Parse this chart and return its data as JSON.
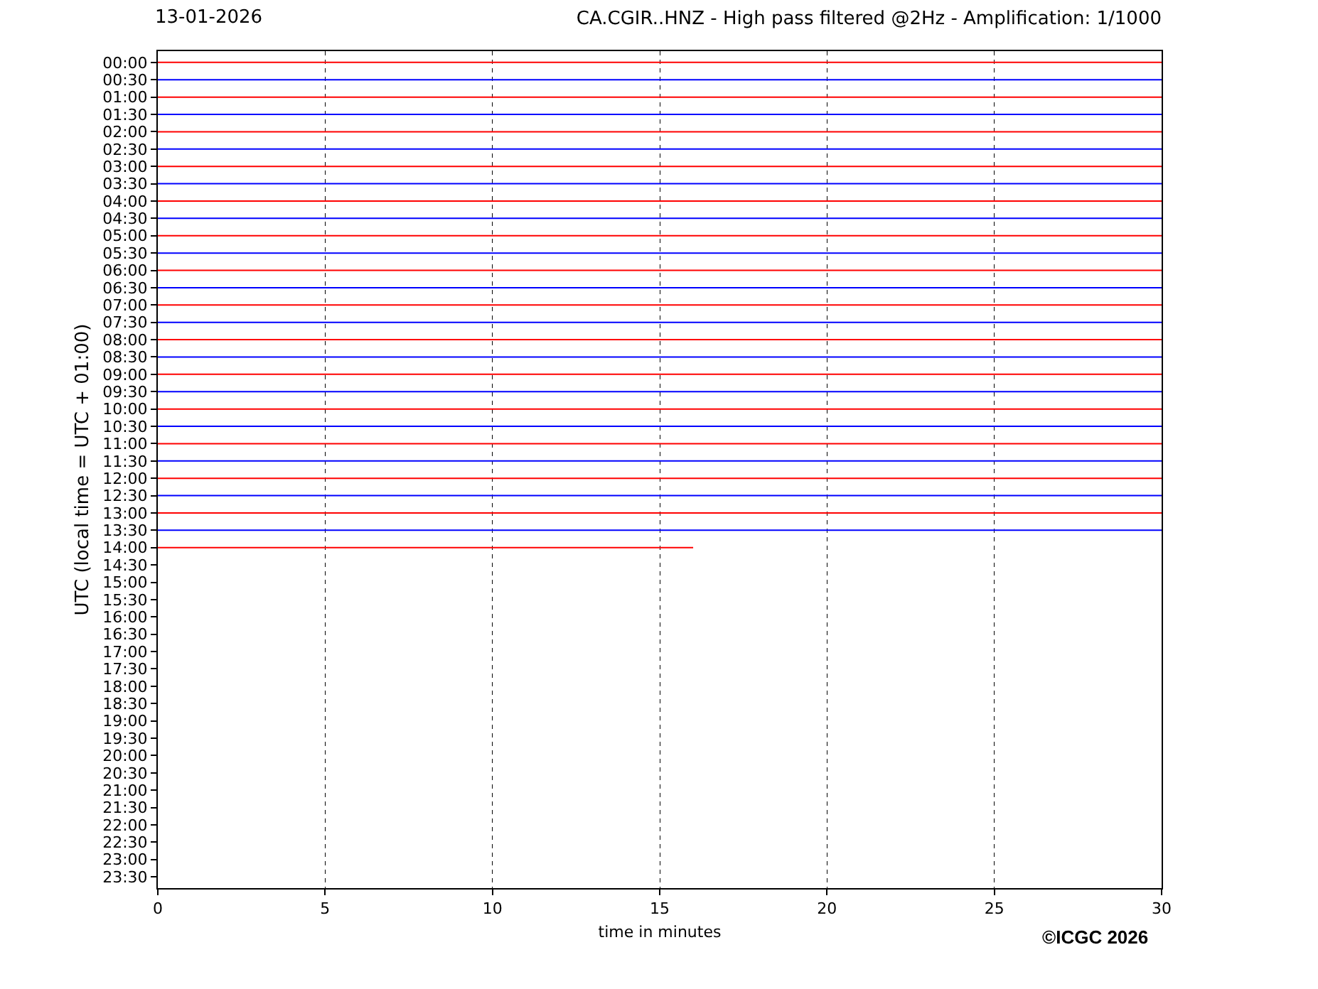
{
  "chart_data": {
    "type": "line",
    "title": "CA.CGIR..HNZ - High pass filtered @2Hz - Amplification: 1/1000",
    "xlabel": "time in minutes",
    "ylabel": "UTC (local time = UTC + 01:00)",
    "annotations": [
      "13-01-2026",
      "©ICGC 2026"
    ],
    "xlim": [
      0,
      30
    ],
    "xticks": [
      0,
      5,
      10,
      15,
      20,
      25,
      30
    ],
    "ylim": [
      23.825,
      -0.325
    ],
    "yticks": [
      {
        "value": 0,
        "label": "00:00"
      },
      {
        "value": 0.5,
        "label": "00:30"
      },
      {
        "value": 1,
        "label": "01:00"
      },
      {
        "value": 1.5,
        "label": "01:30"
      },
      {
        "value": 2,
        "label": "02:00"
      },
      {
        "value": 2.5,
        "label": "02:30"
      },
      {
        "value": 3,
        "label": "03:00"
      },
      {
        "value": 3.5,
        "label": "03:30"
      },
      {
        "value": 4,
        "label": "04:00"
      },
      {
        "value": 4.5,
        "label": "04:30"
      },
      {
        "value": 5,
        "label": "05:00"
      },
      {
        "value": 5.5,
        "label": "05:30"
      },
      {
        "value": 6,
        "label": "06:00"
      },
      {
        "value": 6.5,
        "label": "06:30"
      },
      {
        "value": 7,
        "label": "07:00"
      },
      {
        "value": 7.5,
        "label": "07:30"
      },
      {
        "value": 8,
        "label": "08:00"
      },
      {
        "value": 8.5,
        "label": "08:30"
      },
      {
        "value": 9,
        "label": "09:00"
      },
      {
        "value": 9.5,
        "label": "09:30"
      },
      {
        "value": 10,
        "label": "10:00"
      },
      {
        "value": 10.5,
        "label": "10:30"
      },
      {
        "value": 11,
        "label": "11:00"
      },
      {
        "value": 11.5,
        "label": "11:30"
      },
      {
        "value": 12,
        "label": "12:00"
      },
      {
        "value": 12.5,
        "label": "12:30"
      },
      {
        "value": 13,
        "label": "13:00"
      },
      {
        "value": 13.5,
        "label": "13:30"
      },
      {
        "value": 14,
        "label": "14:00"
      },
      {
        "value": 14.5,
        "label": "14:30"
      },
      {
        "value": 15,
        "label": "15:00"
      },
      {
        "value": 15.5,
        "label": "15:30"
      },
      {
        "value": 16,
        "label": "16:00"
      },
      {
        "value": 16.5,
        "label": "16:30"
      },
      {
        "value": 17,
        "label": "17:00"
      },
      {
        "value": 17.5,
        "label": "17:30"
      },
      {
        "value": 18,
        "label": "18:00"
      },
      {
        "value": 18.5,
        "label": "18:30"
      },
      {
        "value": 19,
        "label": "19:00"
      },
      {
        "value": 19.5,
        "label": "19:30"
      },
      {
        "value": 20,
        "label": "20:00"
      },
      {
        "value": 20.5,
        "label": "20:30"
      },
      {
        "value": 21,
        "label": "21:00"
      },
      {
        "value": 21.5,
        "label": "21:30"
      },
      {
        "value": 22,
        "label": "22:00"
      },
      {
        "value": 22.5,
        "label": "22:30"
      },
      {
        "value": 23,
        "label": "23:00"
      },
      {
        "value": 23.5,
        "label": "23:30"
      }
    ],
    "grid": "x",
    "marker": "none",
    "line_style": "solid",
    "series": [
      {
        "color": "#ff0000",
        "x": [
          0,
          30
        ],
        "values": [
          0,
          0
        ]
      },
      {
        "color": "#0000ff",
        "x": [
          0,
          30
        ],
        "values": [
          0.5,
          0.5
        ]
      },
      {
        "color": "#ff0000",
        "x": [
          0,
          30
        ],
        "values": [
          1,
          1
        ]
      },
      {
        "color": "#0000ff",
        "x": [
          0,
          30
        ],
        "values": [
          1.5,
          1.5
        ]
      },
      {
        "color": "#ff0000",
        "x": [
          0,
          30
        ],
        "values": [
          2,
          2
        ]
      },
      {
        "color": "#0000ff",
        "x": [
          0,
          30
        ],
        "values": [
          2.5,
          2.5
        ]
      },
      {
        "color": "#ff0000",
        "x": [
          0,
          30
        ],
        "values": [
          3,
          3
        ]
      },
      {
        "color": "#0000ff",
        "x": [
          0,
          30
        ],
        "values": [
          3.5,
          3.5
        ]
      },
      {
        "color": "#ff0000",
        "x": [
          0,
          30
        ],
        "values": [
          4,
          4
        ]
      },
      {
        "color": "#0000ff",
        "x": [
          0,
          30
        ],
        "values": [
          4.5,
          4.5
        ]
      },
      {
        "color": "#ff0000",
        "x": [
          0,
          30
        ],
        "values": [
          5,
          5
        ]
      },
      {
        "color": "#0000ff",
        "x": [
          0,
          30
        ],
        "values": [
          5.5,
          5.5
        ]
      },
      {
        "color": "#ff0000",
        "x": [
          0,
          30
        ],
        "values": [
          6,
          6
        ]
      },
      {
        "color": "#0000ff",
        "x": [
          0,
          30
        ],
        "values": [
          6.5,
          6.5
        ]
      },
      {
        "color": "#ff0000",
        "x": [
          0,
          30
        ],
        "values": [
          7,
          7
        ]
      },
      {
        "color": "#0000ff",
        "x": [
          0,
          30
        ],
        "values": [
          7.5,
          7.5
        ]
      },
      {
        "color": "#ff0000",
        "x": [
          0,
          30
        ],
        "values": [
          8,
          8
        ]
      },
      {
        "color": "#0000ff",
        "x": [
          0,
          30
        ],
        "values": [
          8.5,
          8.5
        ]
      },
      {
        "color": "#ff0000",
        "x": [
          0,
          30
        ],
        "values": [
          9,
          9
        ]
      },
      {
        "color": "#0000ff",
        "x": [
          0,
          30
        ],
        "values": [
          9.5,
          9.5
        ]
      },
      {
        "color": "#ff0000",
        "x": [
          0,
          30
        ],
        "values": [
          10,
          10
        ]
      },
      {
        "color": "#0000ff",
        "x": [
          0,
          30
        ],
        "values": [
          10.5,
          10.5
        ]
      },
      {
        "color": "#ff0000",
        "x": [
          0,
          30
        ],
        "values": [
          11,
          11
        ]
      },
      {
        "color": "#0000ff",
        "x": [
          0,
          30
        ],
        "values": [
          11.5,
          11.5
        ]
      },
      {
        "color": "#ff0000",
        "x": [
          0,
          30
        ],
        "values": [
          12,
          12
        ]
      },
      {
        "color": "#0000ff",
        "x": [
          0,
          30
        ],
        "values": [
          12.5,
          12.5
        ]
      },
      {
        "color": "#ff0000",
        "x": [
          0,
          30
        ],
        "values": [
          13,
          13
        ]
      },
      {
        "color": "#0000ff",
        "x": [
          0,
          30
        ],
        "values": [
          13.5,
          13.5
        ]
      },
      {
        "color": "#ff0000",
        "x": [
          0,
          16
        ],
        "values": [
          14,
          14
        ]
      }
    ]
  }
}
